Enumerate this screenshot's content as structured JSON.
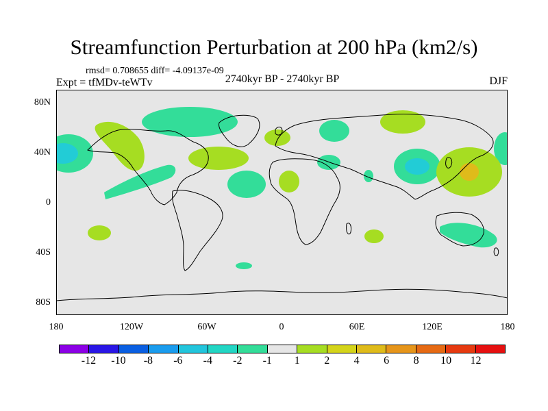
{
  "title": "Streamfunction Perturbation at 200 hPa (km2/s)",
  "stats": "rmsd= 0.708655 diff= -4.09137e-09",
  "experiment": "Expt = tfMDv-teWTv",
  "period": "2740kyr BP - 2740kyr BP",
  "season": "DJF",
  "map": {
    "lon_range": [
      -180,
      180
    ],
    "lat_range": [
      -90,
      90
    ],
    "lat_ticks": [
      "80N",
      "40N",
      "0",
      "40S",
      "80S"
    ],
    "lon_ticks": [
      "180",
      "120W",
      "60W",
      "0",
      "60E",
      "120E",
      "180"
    ],
    "colors": {
      "ocean_land_background": "#e6e6e6",
      "coastline": "#000000",
      "neg_1": "#33dd99",
      "neg_2": "#22ccd6",
      "neg_3": "#1aa5ee",
      "pos_1": "#a6dd22",
      "pos_2": "#dfbb1a"
    }
  },
  "colorbar": {
    "colors": [
      "#8c00e6",
      "#2a16e6",
      "#0a5fe2",
      "#1a9cee",
      "#22c5dc",
      "#22d6c4",
      "#33dd99",
      "#e6e6e6",
      "#a6dd22",
      "#d4d41a",
      "#dfbb1a",
      "#e6951a",
      "#e66a14",
      "#e63a10",
      "#e61010"
    ],
    "labels": [
      "-12",
      "-10",
      "-8",
      "-6",
      "-4",
      "-2",
      "-1",
      "1",
      "2",
      "4",
      "6",
      "8",
      "10",
      "12"
    ]
  }
}
